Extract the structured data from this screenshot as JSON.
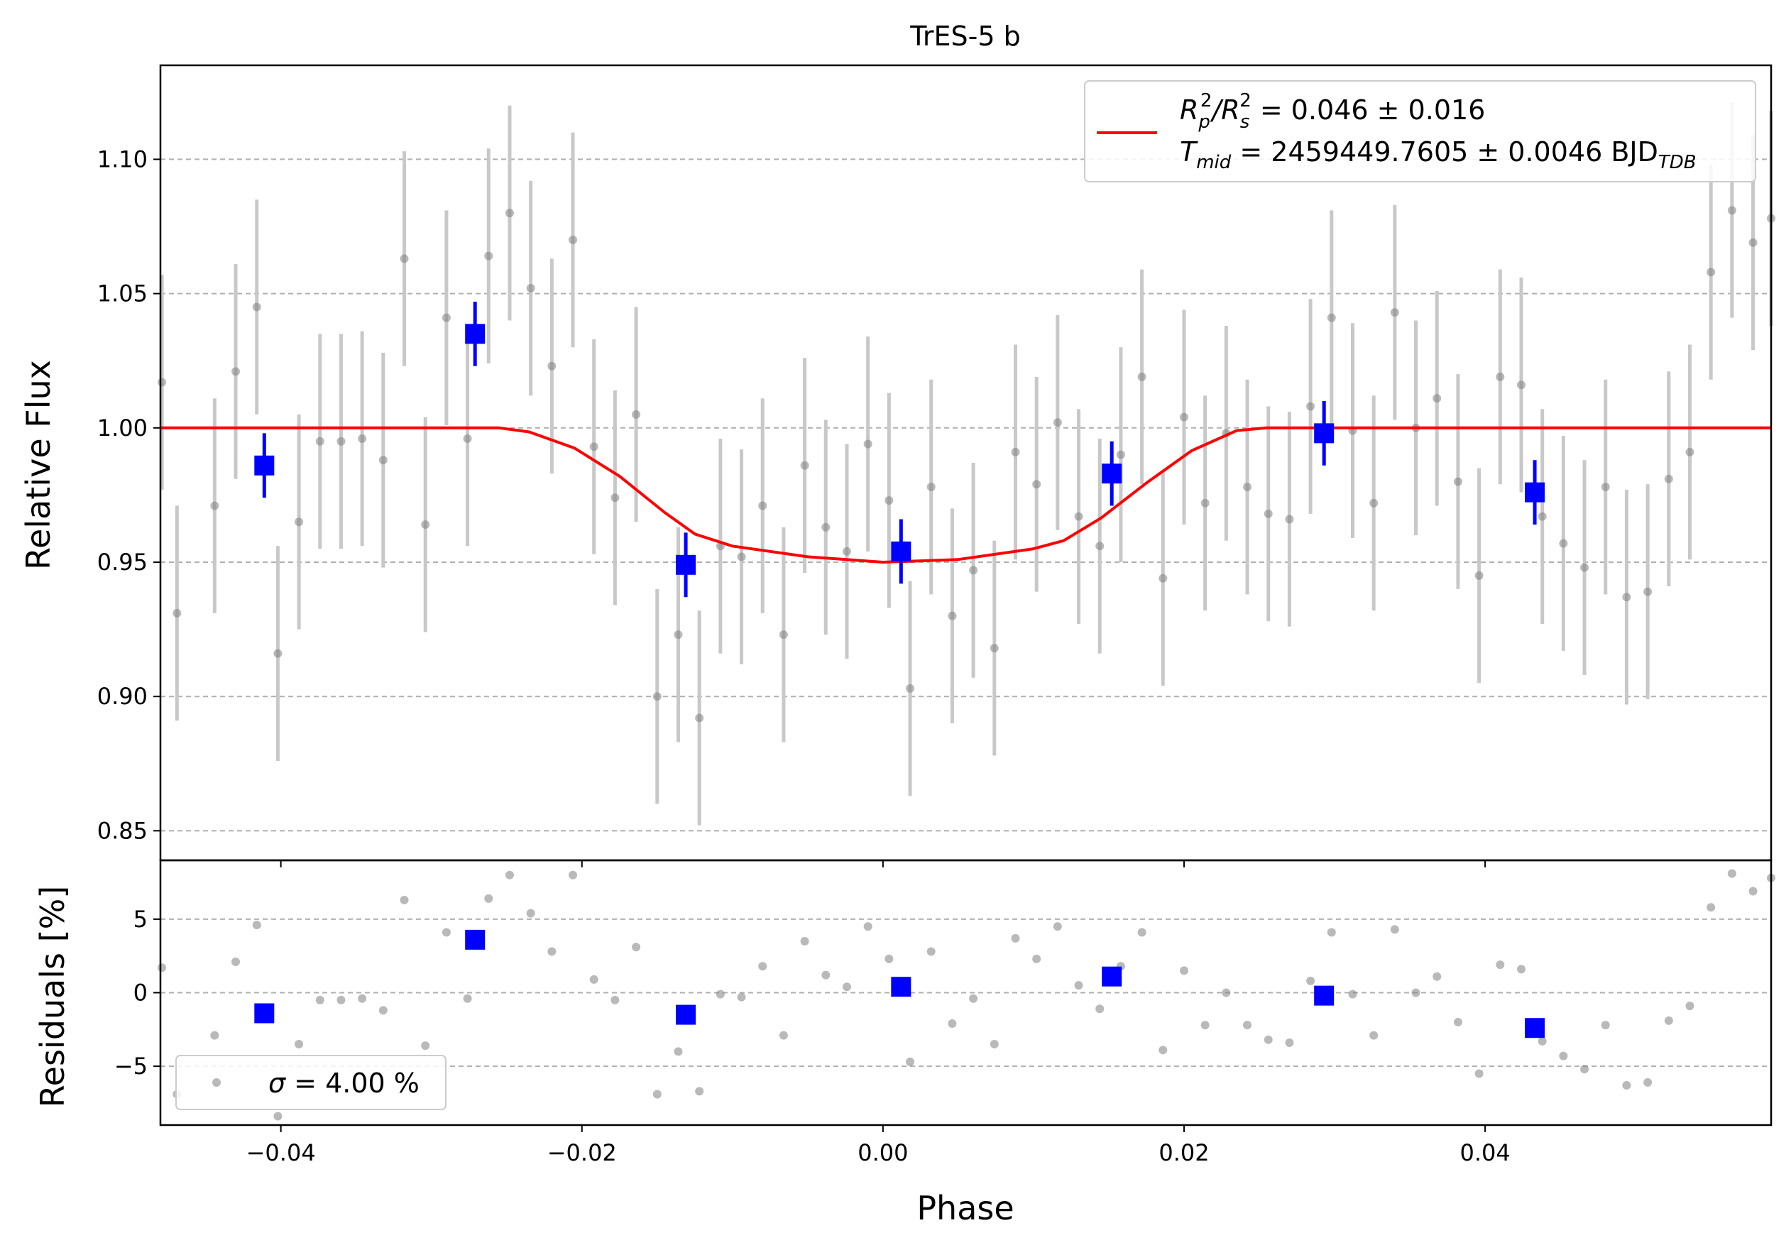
{
  "colors": {
    "raw_points": "#808080",
    "raw_errorbars": "#c8c8c8",
    "binned": "#0000ff",
    "model": "#ff0000",
    "grid": "#b0b0b0"
  },
  "chart_data": [
    {
      "type": "scatter",
      "title": "TrES-5 b",
      "xlabel": "",
      "ylabel": "Relative Flux",
      "xlim": [
        -0.048,
        0.059
      ],
      "ylim": [
        0.839,
        1.135
      ],
      "grid": "horizontal dashed",
      "xticks": [
        -0.04,
        -0.02,
        0.0,
        0.02,
        0.04
      ],
      "xtick_labels": [
        "",
        "",
        "",
        "",
        ""
      ],
      "yticks": [
        0.85,
        0.9,
        0.95,
        1.0,
        1.05,
        1.1
      ],
      "ytick_labels": [
        "0.85",
        "0.90",
        "0.95",
        "1.00",
        "1.05",
        "1.10"
      ],
      "legend": {
        "placement": "top-right",
        "entry_line1_parts": [
          "R",
          "p",
          "2",
          "/R",
          "s",
          "2",
          " = 0.046 ± 0.016"
        ],
        "entry_line2_parts": [
          "T",
          "mid",
          " = 2459449.7605 ± 0.0046 BJD",
          "TDB"
        ]
      },
      "series": [
        {
          "role": "raw",
          "errorbar": 0.04,
          "x": [
            -0.0479,
            -0.0469,
            -0.0444,
            -0.043,
            -0.0416,
            -0.0402,
            -0.0388,
            -0.0374,
            -0.036,
            -0.0346,
            -0.0332,
            -0.0318,
            -0.0304,
            -0.029,
            -0.0276,
            -0.0262,
            -0.0248,
            -0.0234,
            -0.022,
            -0.0206,
            -0.0192,
            -0.0178,
            -0.0164,
            -0.015,
            -0.0136,
            -0.0122,
            -0.0108,
            -0.0094,
            -0.008,
            -0.0066,
            -0.0052,
            -0.0038,
            -0.0024,
            -0.001,
            0.0004,
            0.0018,
            0.0032,
            0.0046,
            0.006,
            0.0074,
            0.0088,
            0.0102,
            0.0116,
            0.013,
            0.0144,
            0.0158,
            0.0172,
            0.0186,
            0.02,
            0.0214,
            0.0228,
            0.0242,
            0.0256,
            0.027,
            0.0284,
            0.0298,
            0.0312,
            0.0326,
            0.034,
            0.0354,
            0.0368,
            0.0382,
            0.0396,
            0.041,
            0.0424,
            0.0438,
            0.0452,
            0.0466,
            0.048,
            0.0494,
            0.0508,
            0.0522,
            0.0536,
            0.055,
            0.0564,
            0.0578,
            0.059
          ],
          "y": [
            1.017,
            0.931,
            0.971,
            1.021,
            1.045,
            0.916,
            0.965,
            0.995,
            0.995,
            0.996,
            0.988,
            1.063,
            0.964,
            1.041,
            0.996,
            1.064,
            1.08,
            1.052,
            1.023,
            1.07,
            0.993,
            0.974,
            1.005,
            0.9,
            0.923,
            0.892,
            0.956,
            0.952,
            0.971,
            0.923,
            0.986,
            0.963,
            0.954,
            0.994,
            0.973,
            0.903,
            0.978,
            0.93,
            0.947,
            0.918,
            0.991,
            0.979,
            1.002,
            0.967,
            0.956,
            0.99,
            1.019,
            0.944,
            1.004,
            0.972,
            0.998,
            0.978,
            0.968,
            0.966,
            1.008,
            1.041,
            0.999,
            0.972,
            1.043,
            1.0,
            1.011,
            0.98,
            0.945,
            1.019,
            1.016,
            0.967,
            0.957,
            0.948,
            0.978,
            0.937,
            0.939,
            0.981,
            0.991,
            1.058,
            1.081,
            1.069,
            1.078
          ]
        },
        {
          "role": "binned",
          "errorbar": 0.012,
          "x": [
            -0.0411,
            -0.0271,
            -0.0131,
            0.0012,
            0.0152,
            0.0293,
            0.0433
          ],
          "y": [
            0.986,
            1.035,
            0.949,
            0.954,
            0.983,
            0.998,
            0.976
          ]
        },
        {
          "role": "model",
          "x": [
            -0.048,
            -0.0255,
            -0.0235,
            -0.0205,
            -0.0175,
            -0.0145,
            -0.0125,
            -0.01,
            -0.005,
            0.0,
            0.005,
            0.01,
            0.012,
            0.0145,
            0.0175,
            0.0205,
            0.0235,
            0.0255,
            0.059
          ],
          "y": [
            1.0,
            1.0,
            0.9985,
            0.9925,
            0.982,
            0.9685,
            0.9605,
            0.956,
            0.952,
            0.95,
            0.951,
            0.955,
            0.958,
            0.9665,
            0.9795,
            0.9915,
            0.999,
            1.0,
            1.0
          ]
        }
      ]
    },
    {
      "type": "scatter",
      "title": "",
      "xlabel": "Phase",
      "ylabel": "Residuals [%]",
      "xlim": [
        -0.048,
        0.059
      ],
      "ylim": [
        -9.0,
        9.0
      ],
      "grid": "horizontal dashed",
      "xticks": [
        -0.04,
        -0.02,
        0.0,
        0.02,
        0.04
      ],
      "xtick_labels": [
        "−0.04",
        "−0.02",
        "0.00",
        "0.02",
        "0.04"
      ],
      "yticks": [
        -5,
        0,
        5
      ],
      "ytick_labels": [
        "−5",
        "0",
        "5"
      ],
      "legend": {
        "placement": "bottom-left",
        "entry_parts": [
          "σ",
          " = 4.00 %"
        ]
      },
      "series": [
        {
          "role": "raw",
          "x": [
            -0.0479,
            -0.0469,
            -0.0444,
            -0.043,
            -0.0416,
            -0.0402,
            -0.0388,
            -0.0374,
            -0.036,
            -0.0346,
            -0.0332,
            -0.0318,
            -0.0304,
            -0.029,
            -0.0276,
            -0.0262,
            -0.0248,
            -0.0234,
            -0.022,
            -0.0206,
            -0.0192,
            -0.0178,
            -0.0164,
            -0.015,
            -0.0136,
            -0.0122,
            -0.0108,
            -0.0094,
            -0.008,
            -0.0066,
            -0.0052,
            -0.0038,
            -0.0024,
            -0.001,
            0.0004,
            0.0018,
            0.0032,
            0.0046,
            0.006,
            0.0074,
            0.0088,
            0.0102,
            0.0116,
            0.013,
            0.0144,
            0.0158,
            0.0172,
            0.0186,
            0.02,
            0.0214,
            0.0228,
            0.0242,
            0.0256,
            0.027,
            0.0284,
            0.0298,
            0.0312,
            0.0326,
            0.034,
            0.0354,
            0.0368,
            0.0382,
            0.0396,
            0.041,
            0.0424,
            0.0438,
            0.0452,
            0.0466,
            0.048,
            0.0494,
            0.0508,
            0.0522,
            0.0536,
            0.055,
            0.0564,
            0.0578,
            0.059
          ],
          "y": [
            1.7,
            -6.9,
            -2.9,
            2.1,
            4.6,
            -8.4,
            -3.5,
            -0.5,
            -0.5,
            -0.4,
            -1.2,
            6.3,
            -3.6,
            4.1,
            -0.4,
            6.4,
            8.0,
            5.4,
            2.8,
            8.0,
            0.9,
            -0.5,
            3.1,
            -6.9,
            -4.0,
            -6.7,
            -0.1,
            -0.3,
            1.8,
            -2.9,
            3.5,
            1.2,
            0.4,
            4.5,
            2.3,
            -4.7,
            2.8,
            -2.1,
            -0.4,
            -3.5,
            3.7,
            2.3,
            4.5,
            0.5,
            -1.1,
            1.8,
            4.1,
            -3.9,
            1.5,
            -2.2,
            0.0,
            -2.2,
            -3.2,
            -3.4,
            0.8,
            4.1,
            -0.1,
            -2.9,
            4.3,
            0.0,
            1.1,
            -2.0,
            -5.5,
            1.9,
            1.6,
            -3.3,
            -4.3,
            -5.2,
            -2.2,
            -6.3,
            -6.1,
            -1.9,
            -0.9,
            5.8,
            8.1,
            6.9,
            7.8
          ]
        },
        {
          "role": "binned",
          "x": [
            -0.0411,
            -0.0271,
            -0.0131,
            0.0012,
            0.0152,
            0.0293,
            0.0433
          ],
          "y": [
            -1.4,
            3.6,
            -1.5,
            0.4,
            1.1,
            -0.2,
            -2.4
          ]
        }
      ]
    }
  ]
}
